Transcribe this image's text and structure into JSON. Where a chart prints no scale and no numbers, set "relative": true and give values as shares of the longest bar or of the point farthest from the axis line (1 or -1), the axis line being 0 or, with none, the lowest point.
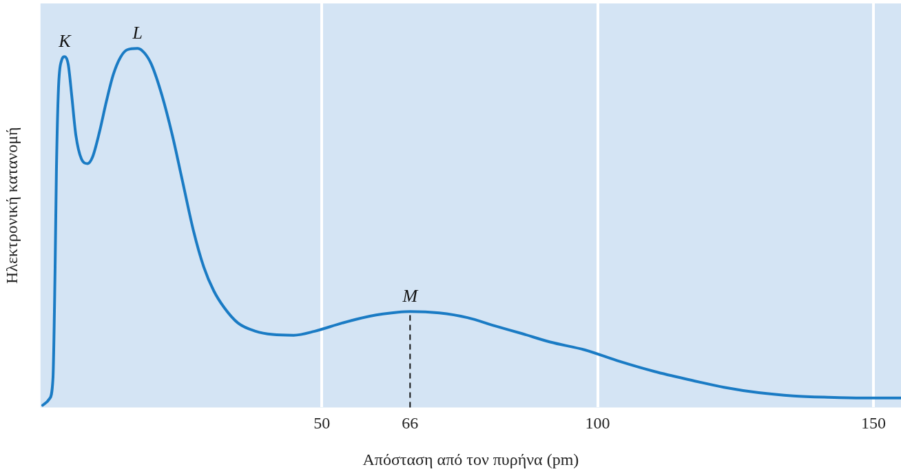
{
  "chart_data": {
    "type": "line",
    "relative": true,
    "xlabel": "Απόσταση από τον πυρήνα (pm)",
    "ylabel": "Ηλεκτρονική κατανομή",
    "xlim": [
      -1,
      155
    ],
    "xticks": [
      50,
      100,
      150
    ],
    "grid": "x",
    "marker": "none",
    "line_style": "solid",
    "series": [
      {
        "color": "#1a7bc4",
        "x": [
          -0.6,
          0.63,
          1.26,
          1.64,
          1.89,
          2.26,
          2.77,
          3.4,
          4.03,
          4.65,
          5.41,
          6.42,
          7.55,
          8.43,
          9.69,
          10.94,
          12.2,
          13.46,
          14.72,
          16.6,
          17.86,
          19.12,
          21.0,
          22.9,
          24.8,
          26.7,
          28.6,
          30.4,
          32.3,
          34.8,
          38.0,
          41.1,
          44.9,
          48.7,
          53.7,
          58.7,
          63.8,
          66,
          71.3,
          76.4,
          81.4,
          86.4,
          91.4,
          97.7,
          104,
          110.3,
          116.6,
          122.9,
          129.2,
          135.5,
          141.8,
          148,
          155
        ],
        "values": [
          0.006,
          0.024,
          0.081,
          0.382,
          0.664,
          0.889,
          0.964,
          0.977,
          0.955,
          0.87,
          0.758,
          0.692,
          0.679,
          0.697,
          0.767,
          0.852,
          0.927,
          0.974,
          0.996,
          1,
          0.987,
          0.955,
          0.87,
          0.758,
          0.626,
          0.494,
          0.391,
          0.325,
          0.278,
          0.235,
          0.212,
          0.203,
          0.201,
          0.212,
          0.235,
          0.254,
          0.265,
          0.267,
          0.263,
          0.25,
          0.227,
          0.205,
          0.182,
          0.16,
          0.128,
          0.1,
          0.077,
          0.056,
          0.041,
          0.032,
          0.028,
          0.026,
          0.026
        ]
      }
    ],
    "ref_lines": [
      {
        "axis": "x",
        "value": 66,
        "label": "66",
        "line_style": "dashed",
        "color": "#111111"
      }
    ],
    "annotations": [
      {
        "text": "K",
        "x": 3.4,
        "y": 0.977
      },
      {
        "text": "L",
        "x": 16.6,
        "y": 1
      },
      {
        "text": "M",
        "x": 66,
        "y": 0.267
      }
    ]
  }
}
